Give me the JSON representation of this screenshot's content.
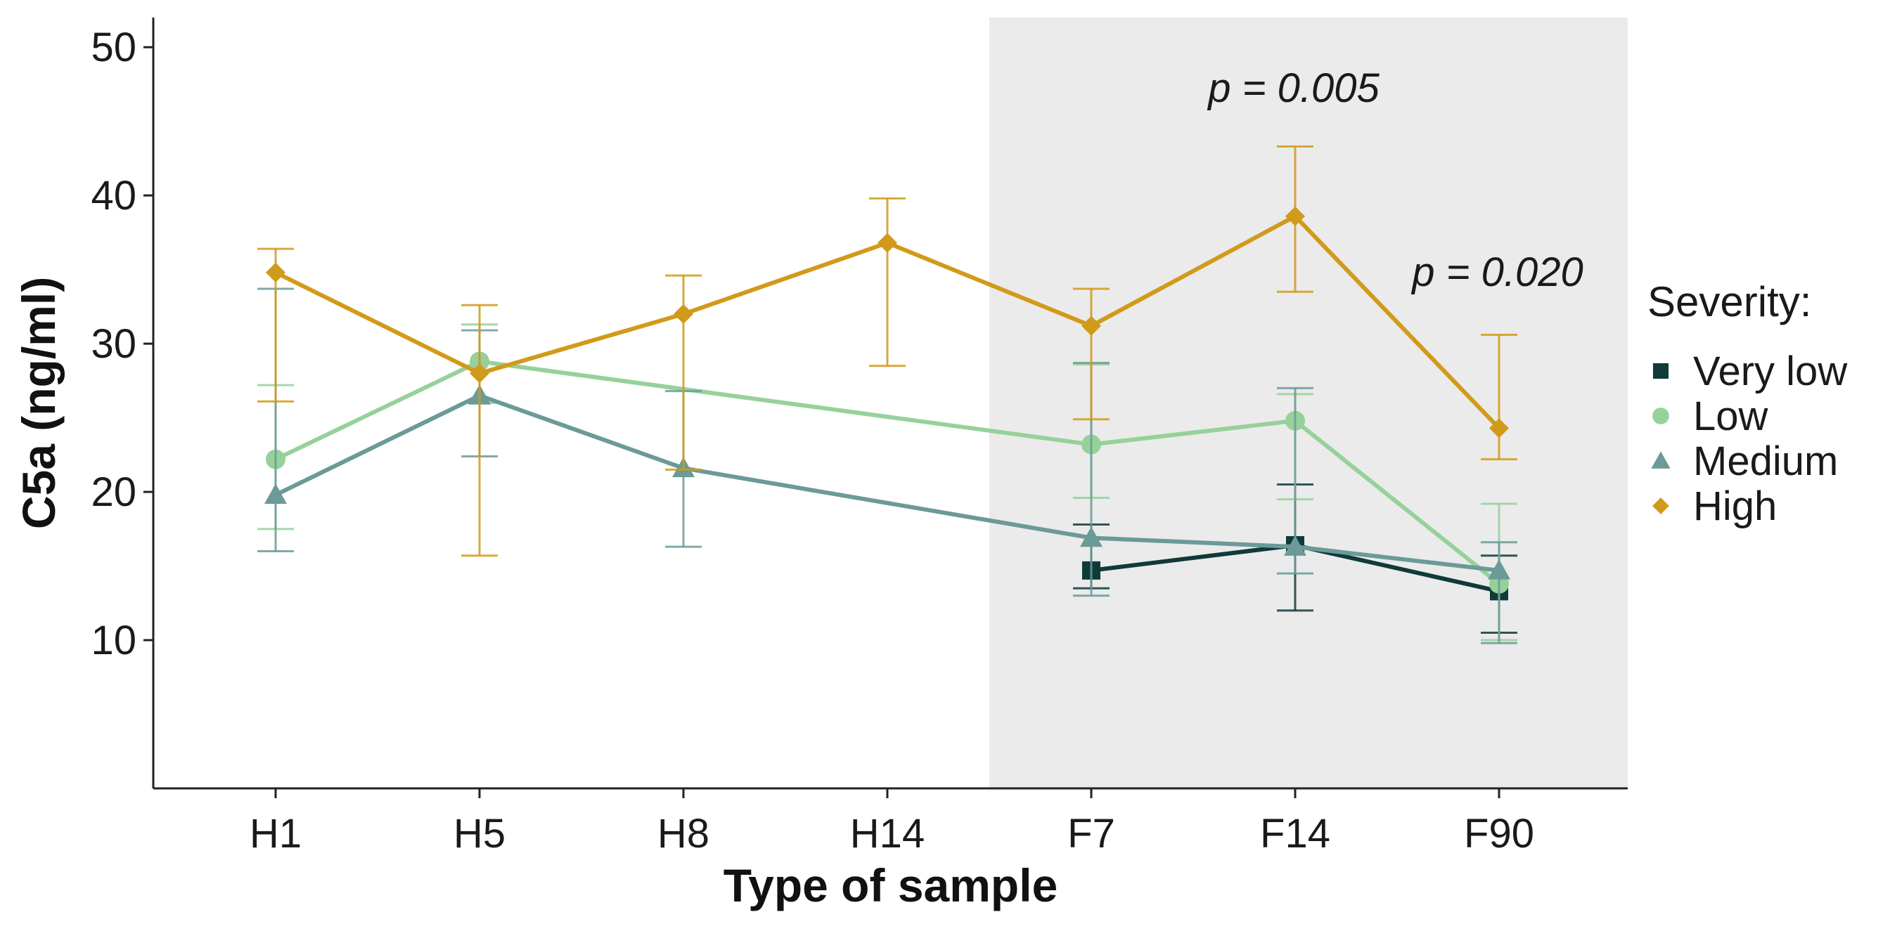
{
  "chart_data": {
    "type": "line",
    "xlabel": "Type of sample",
    "ylabel": "C5a (ng/ml)",
    "categories": [
      "H1",
      "H5",
      "H8",
      "H14",
      "F7",
      "F14",
      "F90"
    ],
    "ylim": [
      0,
      52
    ],
    "yticks": [
      10,
      20,
      30,
      40,
      50
    ],
    "shaded_region": {
      "from_category": "H14",
      "to_category": "F90",
      "color": "#ebebeb"
    },
    "legend": {
      "title": "Severity:",
      "position": "right"
    },
    "series": [
      {
        "name": "Very low",
        "color": "#0f3a3a",
        "marker": "square",
        "values": [
          null,
          null,
          null,
          null,
          14.7,
          16.4,
          13.3
        ],
        "err_low": [
          null,
          null,
          null,
          null,
          13.5,
          12.0,
          10.5
        ],
        "err_high": [
          null,
          null,
          null,
          null,
          17.8,
          20.5,
          15.7
        ]
      },
      {
        "name": "Low",
        "color": "#97d19a",
        "marker": "circle",
        "values": [
          22.2,
          28.8,
          null,
          null,
          23.2,
          24.8,
          13.8
        ],
        "err_low": [
          17.5,
          26.0,
          null,
          null,
          19.6,
          19.5,
          10.0
        ],
        "err_high": [
          27.2,
          31.3,
          null,
          null,
          28.6,
          26.6,
          19.2
        ]
      },
      {
        "name": "Medium",
        "color": "#6b9a98",
        "marker": "triangle",
        "values": [
          19.8,
          26.5,
          21.6,
          null,
          16.9,
          16.3,
          14.7
        ],
        "err_low": [
          16.0,
          22.4,
          16.3,
          null,
          13.0,
          14.5,
          9.8
        ],
        "err_high": [
          33.7,
          30.9,
          26.8,
          null,
          28.7,
          27.0,
          16.6
        ]
      },
      {
        "name": "High",
        "color": "#d29a1a",
        "marker": "diamond",
        "values": [
          34.8,
          28.0,
          32.0,
          36.8,
          31.2,
          38.6,
          24.3
        ],
        "err_low": [
          26.1,
          15.7,
          21.5,
          28.5,
          24.9,
          33.5,
          22.2
        ],
        "err_high": [
          36.4,
          32.6,
          34.6,
          39.8,
          33.7,
          43.3,
          30.6
        ]
      }
    ],
    "annotations": [
      {
        "text": "p = 0.005",
        "category": "F14",
        "y": 46.3
      },
      {
        "text": "p = 0.020",
        "category": "F90",
        "y": 33.9
      }
    ]
  }
}
